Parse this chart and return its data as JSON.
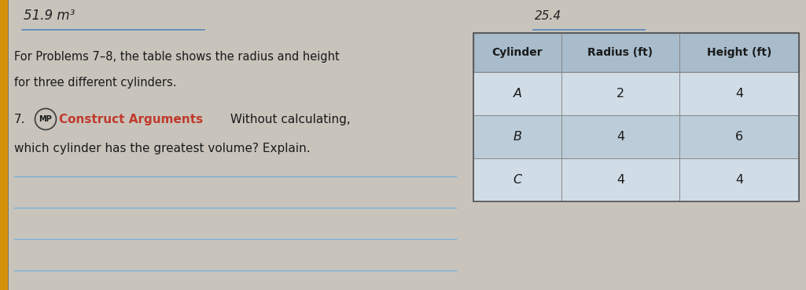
{
  "page_bg": "#c8c4bc",
  "top_handwriting": "51.9 m³",
  "top_right_handwriting": "25.4",
  "intro_text_line1": "For Problems 7–8, the table shows the radius and height",
  "intro_text_line2": "for three different cylinders.",
  "problem_number": "7.",
  "mp_label": "MP",
  "construct_text": "Construct Arguments",
  "question_text_inline": " Without calculating,",
  "question_text_line2": "which cylinder has the greatest volume? Explain.",
  "table_header": [
    "Cylinder",
    "Radius (ft)",
    "Height (ft)"
  ],
  "table_rows": [
    [
      "A",
      "2",
      "4"
    ],
    [
      "B",
      "4",
      "6"
    ],
    [
      "C",
      "4",
      "4"
    ]
  ],
  "table_header_bg": "#a8bccb",
  "table_row_bg_light": "#d0dce6",
  "table_row_bg_dark": "#bcccd8",
  "line_color": "#7ab0d8",
  "left_bar_color": "#d4920a",
  "construct_color": "#c0392b",
  "text_color": "#1a1a1a",
  "handwriting_color": "#222222",
  "underline_color": "#5588bb",
  "table_border_color": "#555555",
  "table_inner_color": "#888888"
}
